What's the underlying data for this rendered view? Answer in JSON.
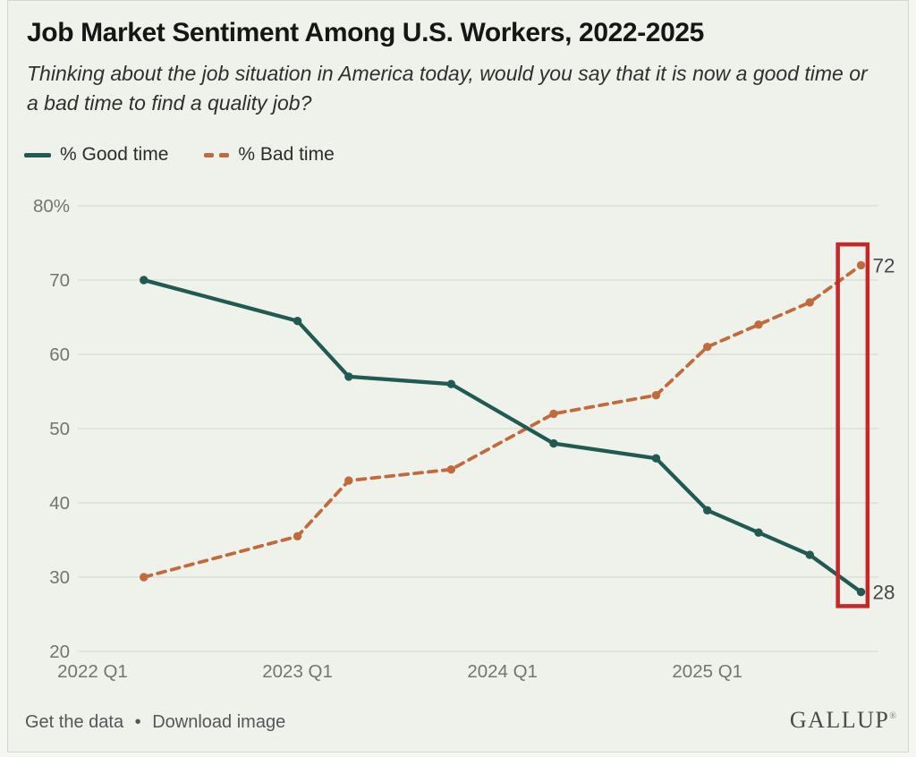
{
  "header": {
    "title": "Job Market Sentiment Among U.S. Workers, 2022-2025",
    "subtitle": "Thinking about the job situation in America today, would you say that it is now a good time or a bad time to find a quality job?"
  },
  "chart_data": {
    "type": "line",
    "x": [
      2022.25,
      2023.0,
      2023.25,
      2023.75,
      2024.25,
      2024.75,
      2025.0,
      2025.25,
      2025.5,
      2025.75
    ],
    "series": [
      {
        "name": "% Good time",
        "style": "solid",
        "color": "#205a52",
        "values": [
          70,
          64.5,
          57,
          56,
          48,
          46,
          39,
          36,
          33,
          28
        ],
        "end_label": "28"
      },
      {
        "name": "% Bad time",
        "style": "dashed",
        "color": "#c16a3c",
        "values": [
          30,
          35.5,
          43,
          44.5,
          52,
          54.5,
          61,
          64,
          67,
          72
        ],
        "end_label": "72"
      }
    ],
    "xlim": [
      2021.928,
      2025.835
    ],
    "ylim": [
      20,
      80
    ],
    "y_ticks": [
      80,
      70,
      60,
      50,
      40,
      30,
      20
    ],
    "y_tick_labels": [
      "80%",
      "70",
      "60",
      "50",
      "40",
      "30",
      "20"
    ],
    "x_ticks": [
      2022,
      2023,
      2024,
      2025
    ],
    "x_tick_labels": [
      "2022 Q1",
      "2023 Q1",
      "2024 Q1",
      "2025 Q1"
    ],
    "grid": "horizontal",
    "legend_position": "top-left",
    "highlight_box": {
      "x_range": [
        2025.637,
        2025.782
      ],
      "y_range": [
        26.1,
        74.8
      ],
      "color": "#c62828"
    }
  },
  "footer": {
    "get_data_label": "Get the data",
    "separator": "•",
    "download_label": "Download image",
    "brand": "GALLUP",
    "brand_mark": "®"
  },
  "colors": {
    "background": "#eef2ea",
    "grid": "#d8dcd2",
    "axis_text": "#73756f",
    "end_label_text": "#48494b",
    "highlight": "#c62828"
  }
}
